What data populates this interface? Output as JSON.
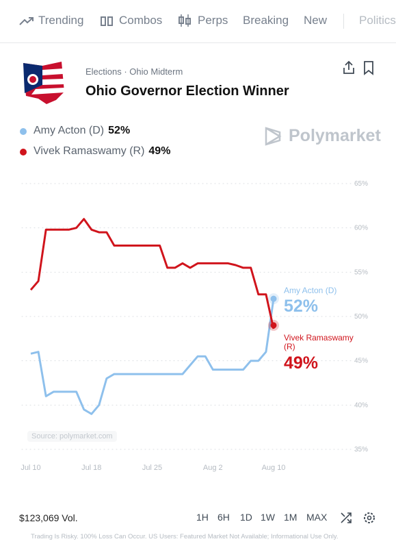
{
  "nav": [
    "Trending",
    "Combos",
    "Perps",
    "Breaking",
    "New",
    "Politics"
  ],
  "header": {
    "category": "Elections · Ohio Midterm",
    "title": "Ohio Governor Election Winner"
  },
  "brand": "Polymarket",
  "source": "Source: polymarket.com",
  "footer": {
    "volume": "$123,069 Vol.",
    "ranges": [
      "1H",
      "6H",
      "1D",
      "1W",
      "1M",
      "MAX"
    ],
    "disclaimer": "Trading Is Risky. 100% Loss Can Occur. US Users: Featured Market Not Available; Informational Use Only."
  },
  "chart_data": {
    "type": "line",
    "x": [
      "Jul 10",
      null,
      null,
      null,
      null,
      null,
      null,
      null,
      "Jul 18",
      null,
      null,
      null,
      null,
      null,
      null,
      null,
      "Jul 25",
      null,
      null,
      null,
      null,
      null,
      null,
      null,
      "Aug 2",
      null,
      null,
      null,
      null,
      null,
      null,
      null,
      "Aug 10"
    ],
    "ylim": [
      35,
      65
    ],
    "yticks": [
      {
        "value": 35,
        "label": "35%"
      },
      {
        "value": 40,
        "label": "40%"
      },
      {
        "value": 45,
        "label": "45%"
      },
      {
        "value": 50,
        "label": "50%"
      },
      {
        "value": 55,
        "label": "55%"
      },
      {
        "value": 60,
        "label": "60%"
      },
      {
        "value": 65,
        "label": "65%"
      }
    ],
    "grid": true,
    "series": [
      {
        "name": "Amy Acton (D)",
        "color": "#8ec0ec",
        "current": {
          "value": 52,
          "label": "52%"
        },
        "values": [
          45.8,
          46,
          41,
          41.5,
          41.5,
          41.5,
          41.5,
          39.5,
          39,
          40,
          43,
          43.5,
          43.5,
          43.5,
          43.5,
          43.5,
          43.5,
          43.5,
          43.5,
          43.5,
          43.5,
          44.5,
          45.5,
          45.5,
          44,
          44,
          44,
          44,
          44,
          45,
          45,
          46,
          52
        ]
      },
      {
        "name": "Vivek Ramaswamy (R)",
        "color": "#d0141c",
        "current": {
          "value": 49,
          "label": "49%"
        },
        "values": [
          53,
          54,
          59.8,
          59.8,
          59.8,
          59.8,
          60,
          61,
          59.8,
          59.5,
          59.5,
          58,
          58,
          58,
          58,
          58,
          58,
          58,
          55.5,
          55.5,
          56,
          55.5,
          56,
          56,
          56,
          56,
          56,
          55.8,
          55.5,
          55.5,
          52.5,
          52.5,
          48.6
        ]
      }
    ]
  }
}
